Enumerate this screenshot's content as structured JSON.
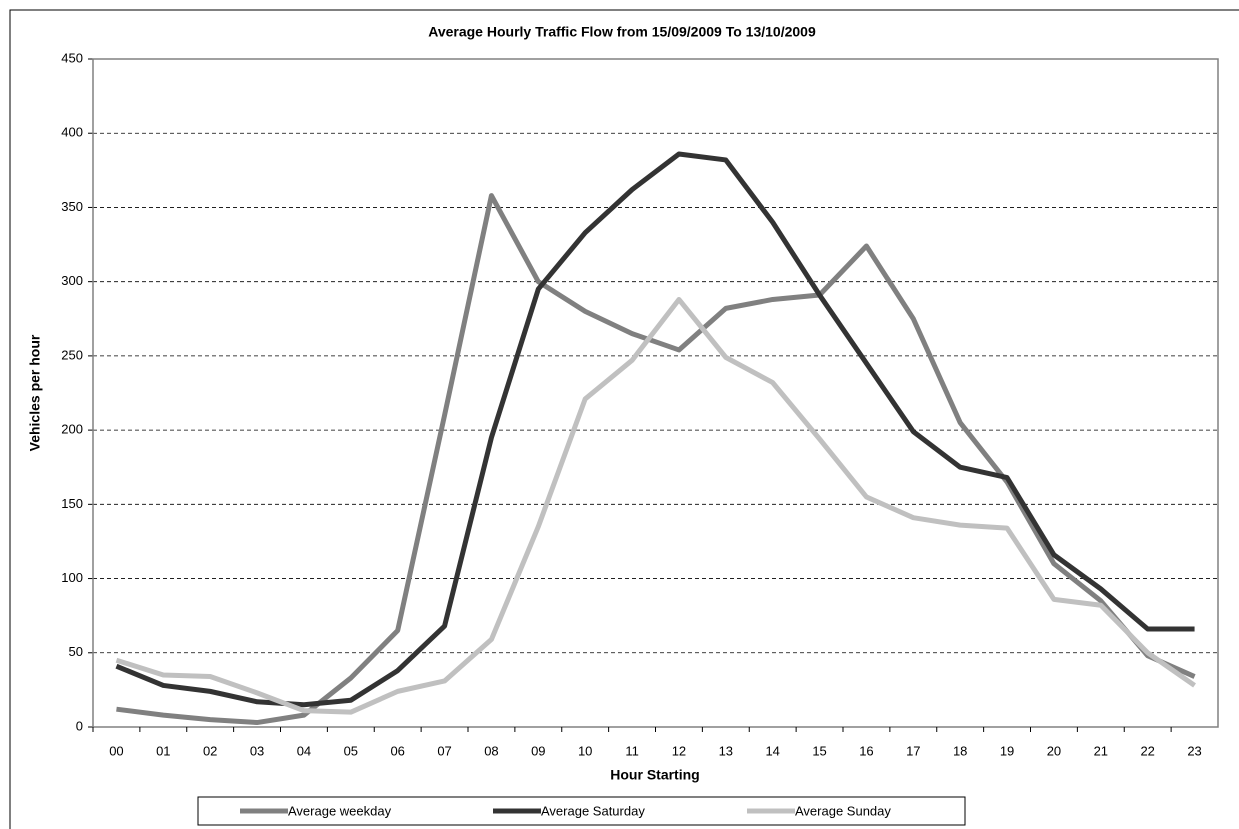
{
  "chart_data": {
    "type": "line",
    "title": "Average Hourly Traffic Flow from 15/09/2009 To 13/10/2009",
    "x_label": "Hour Starting",
    "y_label": "Vehicles per hour",
    "categories": [
      "00",
      "01",
      "02",
      "03",
      "04",
      "05",
      "06",
      "07",
      "08",
      "09",
      "10",
      "11",
      "12",
      "13",
      "14",
      "15",
      "16",
      "17",
      "18",
      "19",
      "20",
      "21",
      "22",
      "23"
    ],
    "series": [
      {
        "name": "Average weekday",
        "color": "#808080",
        "values": [
          12,
          8,
          5,
          3,
          8,
          33,
          65,
          210,
          358,
          300,
          280,
          265,
          254,
          282,
          288,
          291,
          324,
          275,
          205,
          165,
          110,
          85,
          48,
          34
        ]
      },
      {
        "name": "Average Saturday",
        "color": "#333333",
        "values": [
          41,
          28,
          24,
          17,
          15,
          18,
          38,
          68,
          195,
          295,
          333,
          362,
          386,
          382,
          340,
          291,
          245,
          199,
          175,
          168,
          116,
          93,
          66,
          66
        ]
      },
      {
        "name": "Average Sunday",
        "color": "#c0c0c0",
        "values": [
          45,
          35,
          34,
          23,
          11,
          10,
          24,
          31,
          59,
          135,
          221,
          247,
          288,
          249,
          232,
          194,
          155,
          141,
          136,
          134,
          86,
          82,
          50,
          28
        ]
      }
    ],
    "ylim": [
      0,
      450
    ],
    "yticks": [
      0,
      50,
      100,
      150,
      200,
      250,
      300,
      350,
      400,
      450
    ],
    "grid": true,
    "legend": "bottom"
  }
}
